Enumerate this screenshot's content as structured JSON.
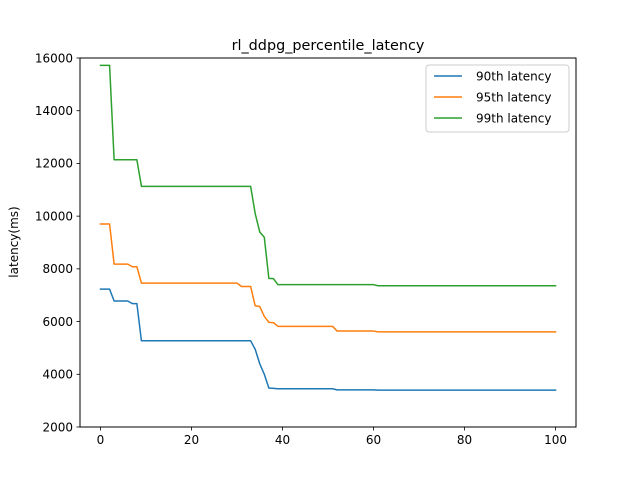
{
  "chart_data": {
    "type": "line",
    "title": "rl_ddpg_percentile_latency",
    "xlabel": "",
    "ylabel": "latency(ms)",
    "xlim": [
      -4.5,
      104.5
    ],
    "ylim": [
      2000,
      16000
    ],
    "xticks": [
      0,
      20,
      40,
      60,
      80,
      100
    ],
    "yticks": [
      2000,
      4000,
      6000,
      8000,
      10000,
      12000,
      14000,
      16000
    ],
    "grid": false,
    "legend": "top-right",
    "series": [
      {
        "name": "90th latency",
        "color": "#1f77b4",
        "points": [
          [
            0,
            7230
          ],
          [
            2,
            7230
          ],
          [
            3,
            6780
          ],
          [
            6,
            6780
          ],
          [
            7,
            6680
          ],
          [
            8,
            6680
          ],
          [
            9,
            5270
          ],
          [
            33,
            5270
          ],
          [
            34,
            4950
          ],
          [
            35,
            4400
          ],
          [
            36,
            4000
          ],
          [
            37,
            3480
          ],
          [
            39,
            3450
          ],
          [
            51,
            3450
          ],
          [
            52,
            3410
          ],
          [
            60,
            3410
          ],
          [
            61,
            3400
          ],
          [
            100,
            3400
          ]
        ]
      },
      {
        "name": "95th latency",
        "color": "#ff7f0e",
        "points": [
          [
            0,
            9700
          ],
          [
            2,
            9700
          ],
          [
            3,
            8180
          ],
          [
            6,
            8180
          ],
          [
            7,
            8080
          ],
          [
            8,
            8080
          ],
          [
            9,
            7460
          ],
          [
            30,
            7460
          ],
          [
            31,
            7330
          ],
          [
            33,
            7330
          ],
          [
            34,
            6600
          ],
          [
            35,
            6570
          ],
          [
            36,
            6200
          ],
          [
            37,
            5970
          ],
          [
            38,
            5960
          ],
          [
            39,
            5820
          ],
          [
            51,
            5820
          ],
          [
            52,
            5640
          ],
          [
            60,
            5640
          ],
          [
            61,
            5610
          ],
          [
            100,
            5610
          ]
        ]
      },
      {
        "name": "99th latency",
        "color": "#2ca02c",
        "points": [
          [
            0,
            15720
          ],
          [
            2,
            15720
          ],
          [
            3,
            12140
          ],
          [
            8,
            12140
          ],
          [
            9,
            11130
          ],
          [
            33,
            11130
          ],
          [
            34,
            10100
          ],
          [
            35,
            9400
          ],
          [
            36,
            9200
          ],
          [
            37,
            7640
          ],
          [
            38,
            7630
          ],
          [
            39,
            7400
          ],
          [
            60,
            7400
          ],
          [
            61,
            7360
          ],
          [
            100,
            7360
          ]
        ]
      }
    ]
  }
}
